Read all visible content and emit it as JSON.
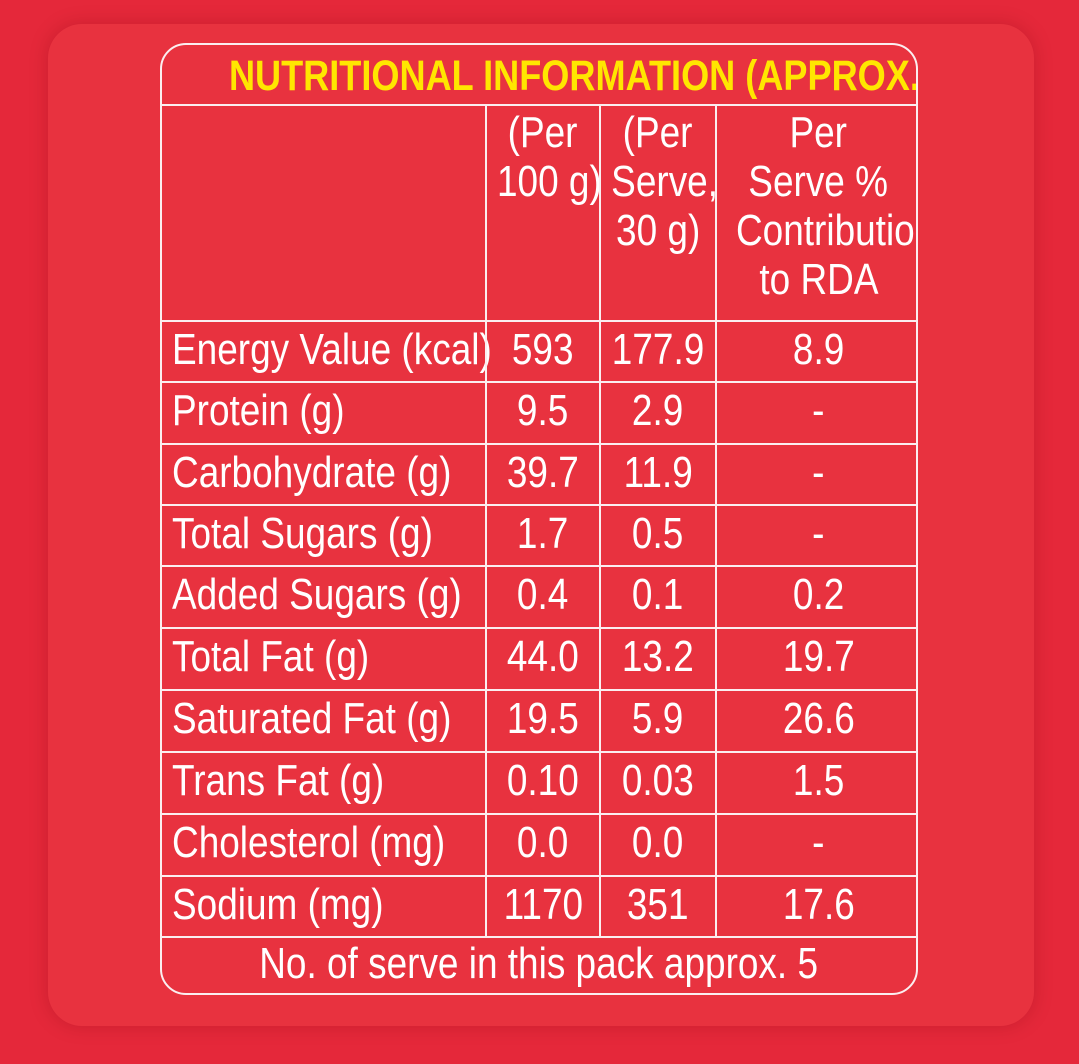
{
  "title": "NUTRITIONAL INFORMATION (APPROX.)",
  "headers": [
    "",
    [
      "(Per",
      "100 g)"
    ],
    [
      "(Per",
      "Serve,",
      "30 g)"
    ],
    [
      "Per",
      "Serve %",
      "Contribution",
      "to RDA"
    ]
  ],
  "rows": [
    {
      "label": "Energy Value (kcal)",
      "per100": "593",
      "perServe": "177.9",
      "rda": "8.9"
    },
    {
      "label": "Protein (g)",
      "per100": "9.5",
      "perServe": "2.9",
      "rda": "-"
    },
    {
      "label": "Carbohydrate (g)",
      "per100": "39.7",
      "perServe": "11.9",
      "rda": "-"
    },
    {
      "label": "Total Sugars (g)",
      "per100": "1.7",
      "perServe": "0.5",
      "rda": "-"
    },
    {
      "label": "Added Sugars (g)",
      "per100": "0.4",
      "perServe": "0.1",
      "rda": "0.2"
    },
    {
      "label": "Total Fat (g)",
      "per100": "44.0",
      "perServe": "13.2",
      "rda": "19.7"
    },
    {
      "label": "Saturated Fat (g)",
      "per100": "19.5",
      "perServe": "5.9",
      "rda": "26.6"
    },
    {
      "label": "Trans Fat (g)",
      "per100": "0.10",
      "perServe": "0.03",
      "rda": "1.5"
    },
    {
      "label": "Cholesterol (mg)",
      "per100": "0.0",
      "perServe": "0.0",
      "rda": "-"
    },
    {
      "label": "Sodium (mg)",
      "per100": "1170",
      "perServe": "351",
      "rda": "17.6"
    }
  ],
  "footer": "No. of serve in this pack approx. 5",
  "colors": {
    "background": "#e8323f",
    "title": "#ffe600",
    "text": "#ffffff"
  }
}
